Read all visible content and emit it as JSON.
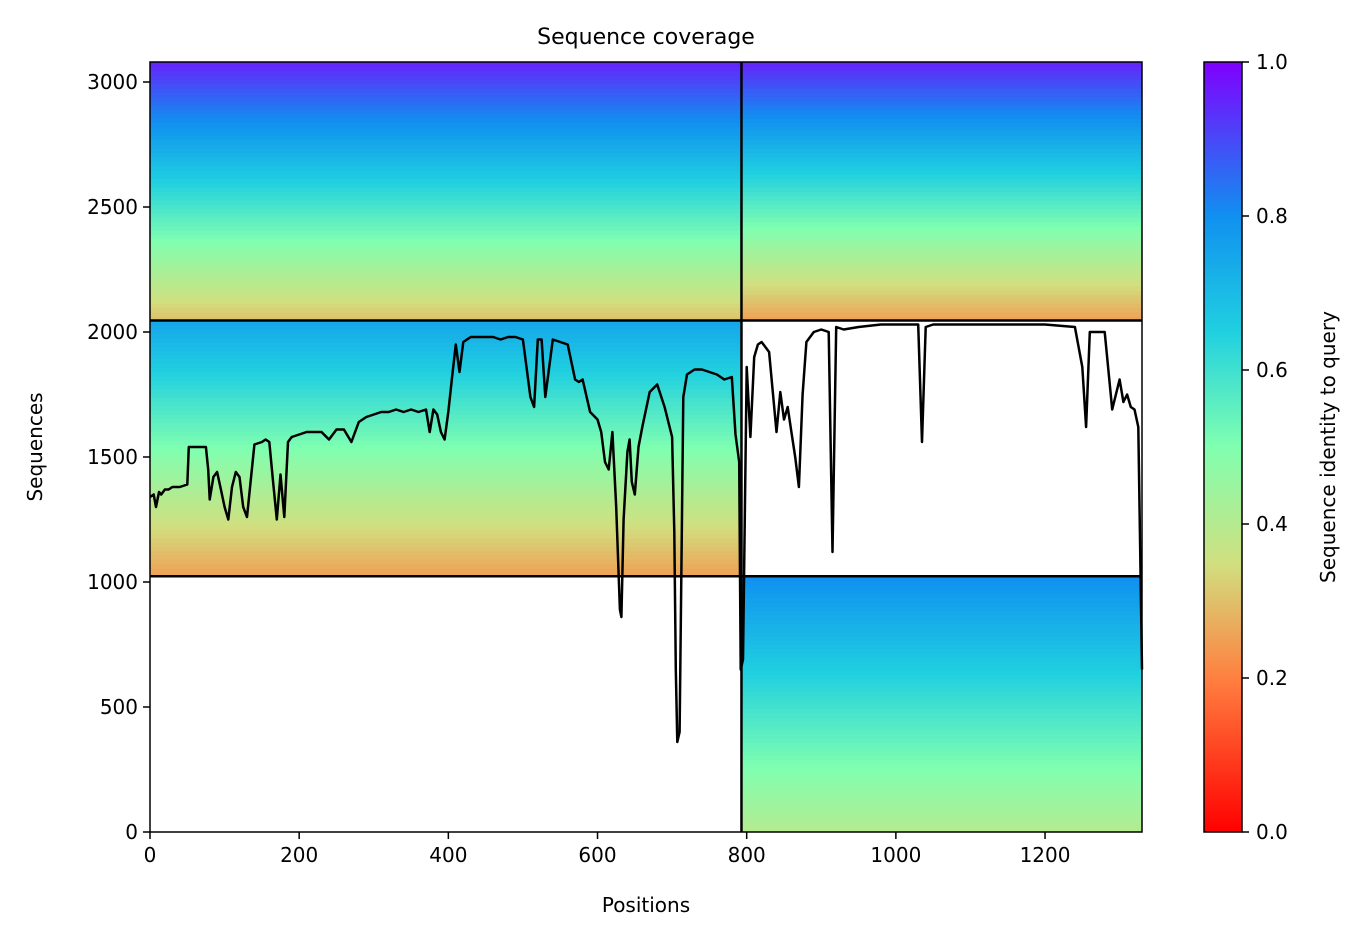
{
  "chart_data": {
    "type": "heatmap",
    "title": "Sequence coverage",
    "xlabel": "Positions",
    "ylabel": "Sequences",
    "xlim": [
      0,
      1330
    ],
    "ylim": [
      0,
      3080
    ],
    "xticks": [
      0,
      200,
      400,
      600,
      800,
      1000,
      1200
    ],
    "yticks": [
      0,
      500,
      1000,
      1500,
      2000,
      2500,
      3000
    ],
    "grid": false,
    "colorbar": {
      "label": "Sequence identity to query",
      "range": [
        0,
        1
      ],
      "ticks": [
        "0.0",
        "0.2",
        "0.4",
        "0.6",
        "0.8",
        "1.0"
      ],
      "colormap": "rainbow_r",
      "colors": [
        "#ff0000",
        "#ff8040",
        "#d0e080",
        "#80ffb0",
        "#20d0e0",
        "#1090f0",
        "#8000ff"
      ]
    },
    "block_boundaries": {
      "x": [
        793
      ],
      "y": [
        1023,
        2046
      ]
    },
    "blocks": [
      {
        "name": "top-left",
        "x": [
          0,
          793
        ],
        "y": [
          2046,
          3080
        ],
        "identity_range": [
          0.3,
          0.95
        ]
      },
      {
        "name": "top-right",
        "x": [
          793,
          1330
        ],
        "y": [
          2046,
          3080
        ],
        "identity_range": [
          0.25,
          0.95
        ]
      },
      {
        "name": "middle-left",
        "x": [
          0,
          793
        ],
        "y": [
          1023,
          2046
        ],
        "identity_range": [
          0.25,
          0.75
        ]
      },
      {
        "name": "bottom-right",
        "x": [
          793,
          1330
        ],
        "y": [
          0,
          1023
        ],
        "identity_range": [
          0.4,
          0.8
        ]
      }
    ],
    "coverage_line": {
      "color": "#000000",
      "x": [
        0,
        5,
        8,
        12,
        15,
        20,
        25,
        30,
        40,
        50,
        52,
        55,
        75,
        78,
        80,
        85,
        90,
        95,
        100,
        105,
        110,
        115,
        120,
        125,
        130,
        140,
        150,
        155,
        160,
        165,
        170,
        175,
        180,
        185,
        190,
        200,
        210,
        220,
        230,
        240,
        250,
        260,
        270,
        280,
        290,
        300,
        310,
        320,
        330,
        340,
        350,
        360,
        370,
        375,
        380,
        385,
        390,
        395,
        400,
        405,
        410,
        415,
        420,
        430,
        440,
        450,
        460,
        470,
        480,
        490,
        500,
        510,
        515,
        520,
        525,
        530,
        540,
        550,
        560,
        570,
        575,
        580,
        590,
        600,
        605,
        610,
        615,
        620,
        625,
        630,
        632,
        635,
        640,
        643,
        646,
        650,
        655,
        660,
        670,
        680,
        690,
        700,
        703,
        705,
        707,
        710,
        715,
        720,
        730,
        740,
        750,
        760,
        770,
        780,
        785,
        790,
        792,
        795,
        800,
        805,
        810,
        815,
        820,
        830,
        840,
        845,
        850,
        855,
        860,
        865,
        870,
        875,
        880,
        890,
        900,
        910,
        915,
        920,
        930,
        950,
        980,
        1000,
        1030,
        1035,
        1040,
        1050,
        1100,
        1150,
        1200,
        1240,
        1250,
        1255,
        1260,
        1270,
        1280,
        1290,
        1300,
        1305,
        1310,
        1315,
        1320,
        1325,
        1330
      ],
      "y": [
        1340,
        1350,
        1300,
        1360,
        1350,
        1370,
        1370,
        1380,
        1380,
        1390,
        1540,
        1540,
        1540,
        1450,
        1330,
        1420,
        1440,
        1370,
        1300,
        1250,
        1380,
        1440,
        1420,
        1300,
        1260,
        1550,
        1560,
        1570,
        1560,
        1400,
        1250,
        1430,
        1260,
        1560,
        1580,
        1590,
        1600,
        1600,
        1600,
        1570,
        1610,
        1610,
        1560,
        1640,
        1660,
        1670,
        1680,
        1680,
        1690,
        1680,
        1690,
        1680,
        1690,
        1600,
        1690,
        1670,
        1600,
        1570,
        1680,
        1820,
        1950,
        1840,
        1960,
        1980,
        1980,
        1980,
        1980,
        1970,
        1980,
        1980,
        1970,
        1740,
        1700,
        1970,
        1970,
        1740,
        1970,
        1960,
        1950,
        1810,
        1800,
        1810,
        1680,
        1650,
        1600,
        1480,
        1450,
        1600,
        1300,
        890,
        860,
        1250,
        1520,
        1570,
        1400,
        1350,
        1540,
        1620,
        1760,
        1790,
        1700,
        1580,
        1200,
        650,
        360,
        400,
        1740,
        1830,
        1850,
        1850,
        1840,
        1830,
        1810,
        1820,
        1590,
        1480,
        650,
        690,
        1860,
        1580,
        1900,
        1950,
        1960,
        1920,
        1600,
        1760,
        1650,
        1700,
        1600,
        1500,
        1380,
        1750,
        1960,
        2000,
        2010,
        2000,
        1120,
        2020,
        2010,
        2020,
        2030,
        2030,
        2030,
        1560,
        2020,
        2030,
        2030,
        2030,
        2030,
        2020,
        1860,
        1620,
        2000,
        2000,
        2000,
        1690,
        1810,
        1720,
        1750,
        1700,
        1690,
        1620,
        650
      ]
    }
  }
}
